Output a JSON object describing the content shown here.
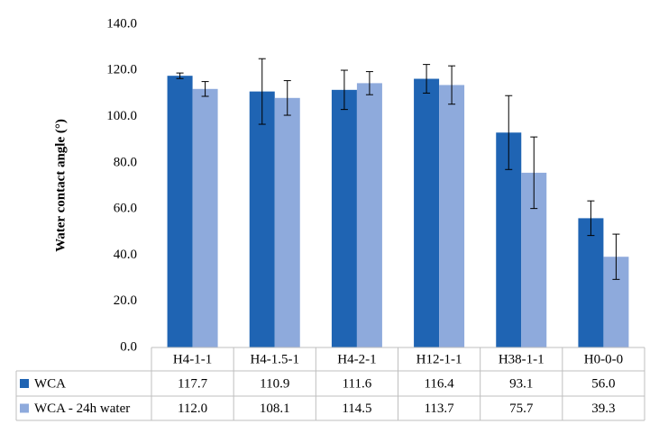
{
  "chart_data": {
    "type": "bar",
    "y_label": "Water contact angle (°)",
    "categories": [
      "H4-1-1",
      "H4-1.5-1",
      "H4-2-1",
      "H12-1-1",
      "H38-1-1",
      "H0-0-0"
    ],
    "series": [
      {
        "name": "WCA",
        "color": "#1f64b3",
        "values": [
          117.7,
          110.9,
          111.6,
          116.4,
          93.1,
          56.0
        ],
        "value_labels": [
          "117.7",
          "110.9",
          "111.6",
          "116.4",
          "93.1",
          "56.0"
        ],
        "errors": [
          1.2,
          14.2,
          8.5,
          6.2,
          16.0,
          7.5
        ]
      },
      {
        "name": "WCA - 24h water",
        "color": "#8eaadc",
        "values": [
          112.0,
          108.1,
          114.5,
          113.7,
          75.7,
          39.3
        ],
        "value_labels": [
          "112.0",
          "108.1",
          "114.5",
          "113.7",
          "75.7",
          "39.3"
        ],
        "errors": [
          3.2,
          7.5,
          5.0,
          8.3,
          15.5,
          9.8
        ]
      }
    ],
    "ylim": [
      0,
      140
    ],
    "yticks": [
      {
        "value": 0,
        "label": "0.0"
      },
      {
        "value": 20,
        "label": "20.0"
      },
      {
        "value": 40,
        "label": "40.0"
      },
      {
        "value": 60,
        "label": "60.0"
      },
      {
        "value": 80,
        "label": "80.0"
      },
      {
        "value": 100,
        "label": "100.0"
      },
      {
        "value": 120,
        "label": "120.0"
      },
      {
        "value": 140,
        "label": "140.0"
      }
    ],
    "grid": false
  }
}
